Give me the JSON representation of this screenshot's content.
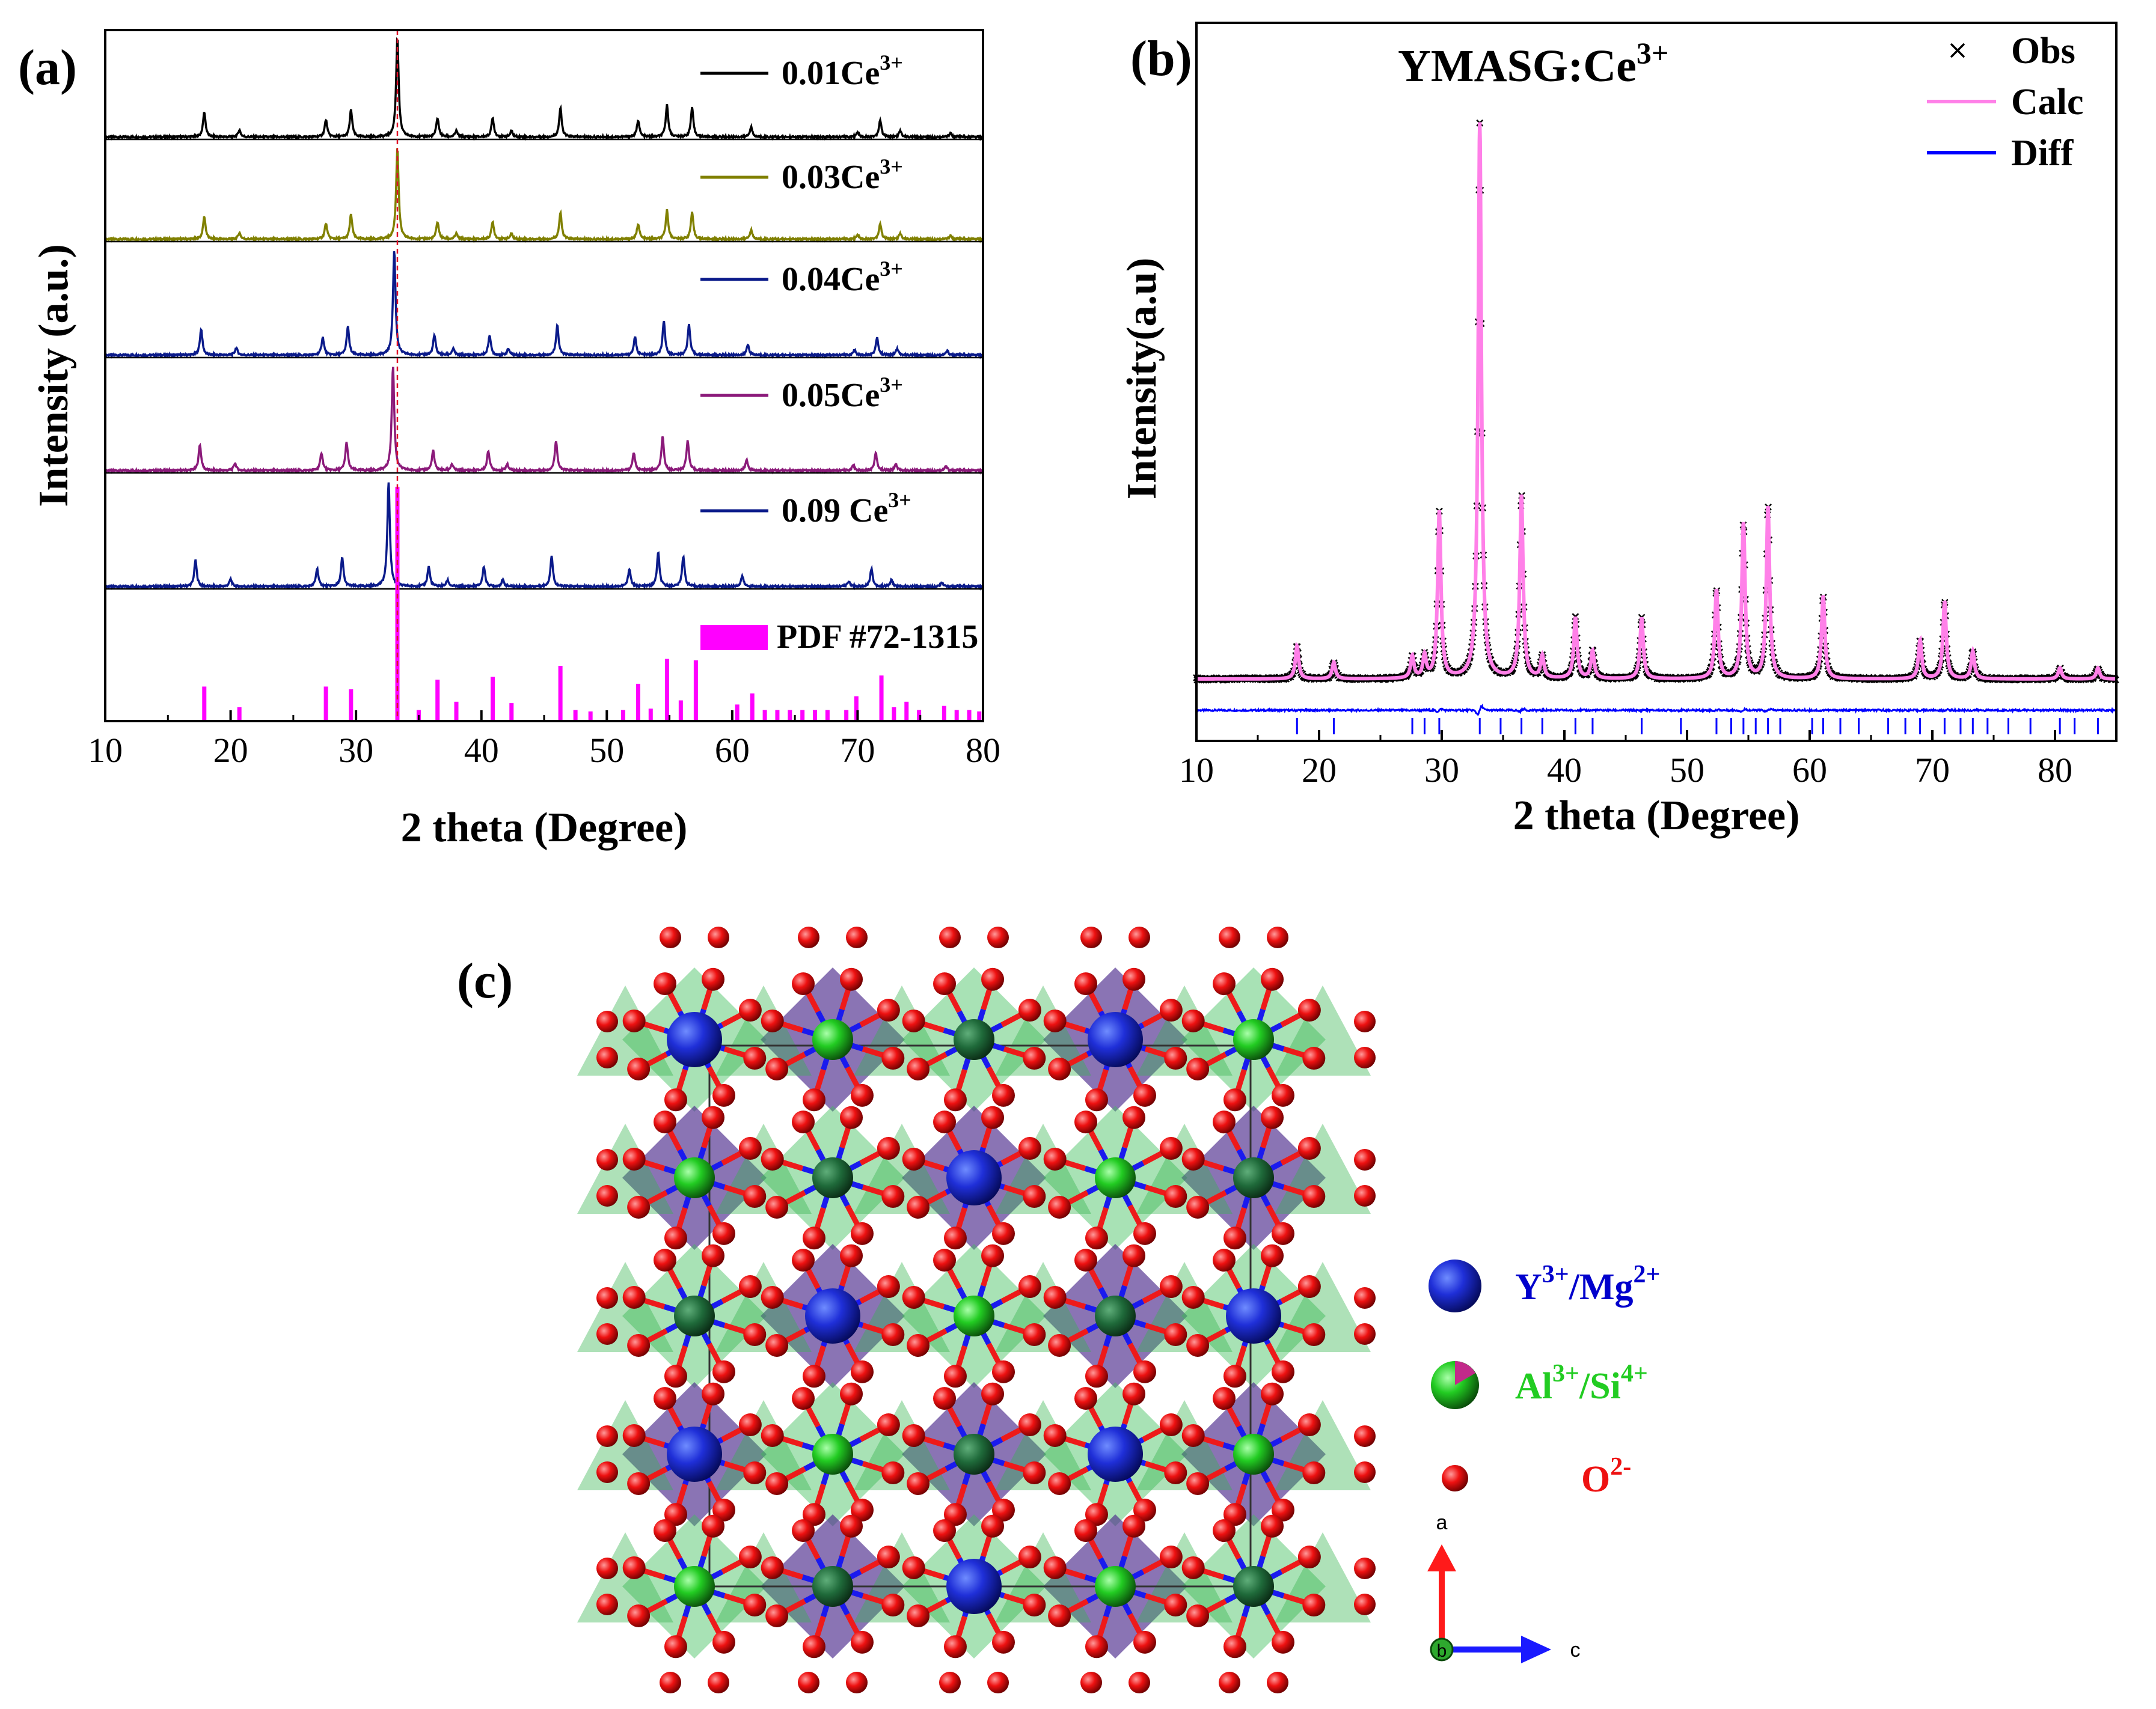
{
  "chart_data": [
    {
      "panel": "(a)",
      "type": "line",
      "xlabel": "2 theta (Degree)",
      "ylabel": "Intensity (a.u.)",
      "xlim": [
        10,
        80
      ],
      "xticks": [
        "10",
        "20",
        "30",
        "40",
        "50",
        "60",
        "70",
        "80"
      ],
      "marker_line_x": 33.3,
      "series": [
        {
          "name": "0.01Ce",
          "sup": "3+",
          "color": "#000000",
          "shift": 0.0,
          "peaks": [
            [
              17.9,
              25
            ],
            [
              20.7,
              7
            ],
            [
              27.6,
              17
            ],
            [
              29.6,
              27
            ],
            [
              33.3,
              100
            ],
            [
              36.5,
              19
            ],
            [
              38.0,
              6
            ],
            [
              40.9,
              19
            ],
            [
              42.4,
              6
            ],
            [
              46.3,
              29
            ],
            [
              52.5,
              17
            ],
            [
              54.8,
              32
            ],
            [
              56.8,
              29
            ],
            [
              61.5,
              10
            ],
            [
              70.0,
              5
            ],
            [
              71.8,
              17
            ],
            [
              73.4,
              6
            ],
            [
              77.4,
              4
            ]
          ]
        },
        {
          "name": "0.03Ce",
          "sup": "3+",
          "color": "#808000",
          "shift": 0.0,
          "peaks": [
            [
              17.9,
              25
            ],
            [
              20.7,
              7
            ],
            [
              27.6,
              17
            ],
            [
              29.6,
              27
            ],
            [
              33.3,
              100
            ],
            [
              36.5,
              19
            ],
            [
              38.0,
              6
            ],
            [
              40.9,
              19
            ],
            [
              42.4,
              6
            ],
            [
              46.3,
              29
            ],
            [
              52.5,
              17
            ],
            [
              54.8,
              32
            ],
            [
              56.8,
              29
            ],
            [
              61.5,
              10
            ],
            [
              70.0,
              5
            ],
            [
              71.8,
              17
            ],
            [
              73.4,
              6
            ],
            [
              77.4,
              4
            ]
          ]
        },
        {
          "name": "0.04Ce",
          "sup": "3+",
          "color": "#0a1a8a",
          "shift": -0.25,
          "peaks": [
            [
              17.9,
              25
            ],
            [
              20.7,
              7
            ],
            [
              27.6,
              17
            ],
            [
              29.6,
              27
            ],
            [
              33.3,
              100
            ],
            [
              36.5,
              19
            ],
            [
              38.0,
              6
            ],
            [
              40.9,
              19
            ],
            [
              42.4,
              6
            ],
            [
              46.3,
              29
            ],
            [
              52.5,
              17
            ],
            [
              54.8,
              32
            ],
            [
              56.8,
              29
            ],
            [
              61.5,
              10
            ],
            [
              70.0,
              5
            ],
            [
              71.8,
              17
            ],
            [
              73.4,
              6
            ],
            [
              77.4,
              4
            ]
          ]
        },
        {
          "name": "0.05Ce",
          "sup": "3+",
          "color": "#8b1a7a",
          "shift": -0.35,
          "peaks": [
            [
              17.9,
              25
            ],
            [
              20.7,
              7
            ],
            [
              27.6,
              17
            ],
            [
              29.6,
              27
            ],
            [
              33.3,
              100
            ],
            [
              36.5,
              19
            ],
            [
              38.0,
              6
            ],
            [
              40.9,
              19
            ],
            [
              42.4,
              6
            ],
            [
              46.3,
              29
            ],
            [
              52.5,
              17
            ],
            [
              54.8,
              32
            ],
            [
              56.8,
              29
            ],
            [
              61.5,
              10
            ],
            [
              70.0,
              5
            ],
            [
              71.8,
              17
            ],
            [
              73.4,
              6
            ],
            [
              77.4,
              4
            ]
          ]
        },
        {
          "name": "0.09 Ce",
          "sup": "3+",
          "color": "#0a1a8a",
          "shift": -0.7,
          "peaks": [
            [
              17.9,
              25
            ],
            [
              20.7,
              7
            ],
            [
              27.6,
              17
            ],
            [
              29.6,
              27
            ],
            [
              33.3,
              100
            ],
            [
              36.5,
              19
            ],
            [
              38.0,
              6
            ],
            [
              40.9,
              19
            ],
            [
              42.4,
              6
            ],
            [
              46.3,
              29
            ],
            [
              52.5,
              17
            ],
            [
              54.8,
              32
            ],
            [
              56.8,
              29
            ],
            [
              61.5,
              10
            ],
            [
              70.0,
              5
            ],
            [
              71.8,
              17
            ],
            [
              73.4,
              6
            ],
            [
              77.4,
              4
            ]
          ]
        }
      ],
      "reference": {
        "name": "PDF #72-1315",
        "color": "#ff00ff",
        "sticks": [
          [
            17.9,
            25
          ],
          [
            20.7,
            10
          ],
          [
            27.6,
            25
          ],
          [
            29.6,
            23
          ],
          [
            33.3,
            100
          ],
          [
            35.0,
            8
          ],
          [
            36.5,
            30
          ],
          [
            38.0,
            14
          ],
          [
            40.9,
            32
          ],
          [
            42.4,
            13
          ],
          [
            46.3,
            40
          ],
          [
            47.5,
            8
          ],
          [
            48.7,
            7
          ],
          [
            51.3,
            8
          ],
          [
            52.5,
            27
          ],
          [
            53.5,
            9
          ],
          [
            54.8,
            45
          ],
          [
            55.9,
            15
          ],
          [
            57.1,
            44
          ],
          [
            60.4,
            12
          ],
          [
            61.6,
            20
          ],
          [
            62.6,
            8
          ],
          [
            63.6,
            8
          ],
          [
            64.6,
            8
          ],
          [
            65.6,
            8
          ],
          [
            66.6,
            8
          ],
          [
            67.6,
            8
          ],
          [
            69.1,
            8
          ],
          [
            69.9,
            18
          ],
          [
            71.9,
            33
          ],
          [
            72.9,
            10
          ],
          [
            73.9,
            14
          ],
          [
            74.9,
            8
          ],
          [
            76.9,
            11
          ],
          [
            77.9,
            8
          ],
          [
            78.9,
            8
          ],
          [
            79.7,
            7
          ]
        ]
      }
    },
    {
      "panel": "(b)",
      "type": "line",
      "title": "YMASG:Ce",
      "title_sup": "3+",
      "xlabel": "2 theta (Degree)",
      "ylabel": "Intensity(a.u)",
      "xlim": [
        10,
        85
      ],
      "xticks": [
        "10",
        "20",
        "30",
        "40",
        "50",
        "60",
        "70",
        "80"
      ],
      "legend": [
        {
          "label": "Obs",
          "color": "#000000",
          "style": "cross"
        },
        {
          "label": "Calc",
          "color": "#ff80e8",
          "style": "line"
        },
        {
          "label": "Diff",
          "color": "#0000ff",
          "style": "line"
        }
      ],
      "peaks": [
        [
          18.2,
          6
        ],
        [
          21.2,
          3
        ],
        [
          27.6,
          4
        ],
        [
          28.6,
          4
        ],
        [
          29.8,
          30
        ],
        [
          33.1,
          100
        ],
        [
          36.5,
          33
        ],
        [
          38.2,
          4
        ],
        [
          40.9,
          11
        ],
        [
          42.3,
          5
        ],
        [
          46.3,
          11
        ],
        [
          52.4,
          16
        ],
        [
          54.6,
          28
        ],
        [
          56.6,
          31
        ],
        [
          61.1,
          15
        ],
        [
          69.0,
          7
        ],
        [
          71.0,
          14
        ],
        [
          73.3,
          5
        ],
        [
          80.4,
          2
        ],
        [
          83.5,
          2
        ]
      ],
      "bragg_ticks": [
        18.2,
        21.2,
        27.6,
        28.6,
        29.8,
        33.1,
        34.8,
        36.5,
        38.2,
        40.9,
        42.3,
        46.3,
        49.5,
        52.4,
        53.6,
        54.6,
        55.6,
        56.6,
        57.6,
        60.2,
        61.1,
        62.5,
        64.0,
        66.4,
        67.8,
        69.0,
        71.0,
        72.3,
        73.3,
        74.5,
        76.2,
        78.0,
        80.4,
        81.6,
        83.5
      ]
    }
  ],
  "panel_c": {
    "label": "(c)",
    "legend": [
      {
        "text": "Y",
        "sup": "3+",
        "text2": "/Mg",
        "sup2": "2+",
        "color": "#0000cc"
      },
      {
        "text": "Al",
        "sup": "3+",
        "text2": "/Si",
        "sup2": "4+",
        "color": "#22cc22"
      },
      {
        "text": "O",
        "sup": "2-",
        "text2": "",
        "sup2": "",
        "color": "#ee1111"
      }
    ],
    "axis_a": "a",
    "axis_b": "b",
    "axis_c": "c"
  }
}
